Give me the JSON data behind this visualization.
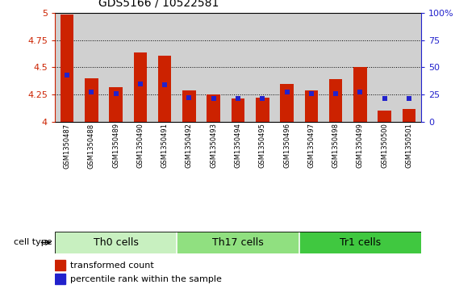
{
  "title": "GDS5166 / 10522581",
  "samples": [
    "GSM1350487",
    "GSM1350488",
    "GSM1350489",
    "GSM1350490",
    "GSM1350491",
    "GSM1350492",
    "GSM1350493",
    "GSM1350494",
    "GSM1350495",
    "GSM1350496",
    "GSM1350497",
    "GSM1350498",
    "GSM1350499",
    "GSM1350500",
    "GSM1350501"
  ],
  "transformed_count": [
    4.99,
    4.4,
    4.32,
    4.64,
    4.61,
    4.29,
    4.25,
    4.21,
    4.22,
    4.35,
    4.29,
    4.39,
    4.5,
    4.1,
    4.12
  ],
  "percentile_rank": [
    43,
    27,
    26,
    35,
    34,
    22,
    21,
    21,
    21,
    27,
    26,
    26,
    27,
    21,
    21
  ],
  "cell_types": [
    {
      "label": "Th0 cells",
      "start": 0,
      "end": 5,
      "color": "#c8f0c0"
    },
    {
      "label": "Th17 cells",
      "start": 5,
      "end": 10,
      "color": "#90e080"
    },
    {
      "label": "Tr1 cells",
      "start": 10,
      "end": 15,
      "color": "#40c840"
    }
  ],
  "ymin": 4.0,
  "ymax": 5.0,
  "yticks_left": [
    4.0,
    4.25,
    4.5,
    4.75,
    5.0
  ],
  "yticks_right": [
    0,
    25,
    50,
    75,
    100
  ],
  "bar_color": "#cc2200",
  "dot_color": "#2222cc",
  "bar_width": 0.55,
  "col_bg_color": "#d0d0d0",
  "title_fontsize": 10,
  "tick_fontsize": 8,
  "xtick_fontsize": 6,
  "legend_fontsize": 8,
  "band_fontsize": 9,
  "cell_type_label_fontsize": 8
}
